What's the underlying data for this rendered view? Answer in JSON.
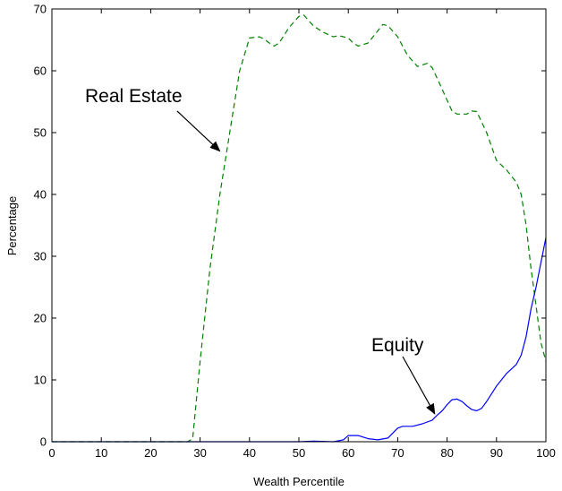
{
  "chart_data": {
    "type": "line",
    "title": "",
    "xlabel": "Wealth Percentile",
    "ylabel": "Percentage",
    "xlim": [
      0,
      100
    ],
    "ylim": [
      0,
      70
    ],
    "xticks": [
      0,
      10,
      20,
      30,
      40,
      50,
      60,
      70,
      80,
      90,
      100
    ],
    "yticks": [
      0,
      10,
      20,
      30,
      40,
      50,
      60,
      70
    ],
    "grid": false,
    "legend": "none",
    "series": [
      {
        "name": "Real Estate",
        "color": "#008000",
        "dash": "dashed",
        "points": [
          [
            0,
            0
          ],
          [
            27.5,
            0
          ],
          [
            28.5,
            0.5
          ],
          [
            30,
            13
          ],
          [
            32,
            28
          ],
          [
            34,
            40
          ],
          [
            36,
            50
          ],
          [
            38,
            60
          ],
          [
            40,
            65.3
          ],
          [
            42,
            65.5
          ],
          [
            43,
            65.1
          ],
          [
            44,
            64.5
          ],
          [
            45,
            64
          ],
          [
            46,
            64.5
          ],
          [
            48,
            67
          ],
          [
            50,
            68.8
          ],
          [
            51,
            69
          ],
          [
            53,
            67.2
          ],
          [
            55,
            66.2
          ],
          [
            57,
            65.5
          ],
          [
            58,
            65.7
          ],
          [
            60,
            65.3
          ],
          [
            61,
            64.5
          ],
          [
            62,
            64
          ],
          [
            64,
            64.5
          ],
          [
            66,
            66.5
          ],
          [
            67,
            67.5
          ],
          [
            68,
            67.3
          ],
          [
            70,
            65.5
          ],
          [
            72,
            62.5
          ],
          [
            74,
            60.7
          ],
          [
            76,
            61.2
          ],
          [
            77,
            60.5
          ],
          [
            79,
            57
          ],
          [
            81,
            53.5
          ],
          [
            82,
            53
          ],
          [
            84,
            53
          ],
          [
            85,
            53.5
          ],
          [
            86,
            53.4
          ],
          [
            88,
            50
          ],
          [
            90,
            45.5
          ],
          [
            92,
            44
          ],
          [
            94,
            42
          ],
          [
            95,
            40
          ],
          [
            96,
            35
          ],
          [
            97,
            28
          ],
          [
            98,
            22
          ],
          [
            99,
            16
          ],
          [
            100,
            13
          ]
        ]
      },
      {
        "name": "Equity",
        "color": "#0000ff",
        "dash": "solid",
        "points": [
          [
            0,
            0
          ],
          [
            50,
            0
          ],
          [
            53,
            0.1
          ],
          [
            57,
            0
          ],
          [
            59,
            0.3
          ],
          [
            60,
            1
          ],
          [
            62,
            1
          ],
          [
            64,
            0.5
          ],
          [
            66,
            0.3
          ],
          [
            68,
            0.6
          ],
          [
            70,
            2.2
          ],
          [
            71,
            2.5
          ],
          [
            73,
            2.5
          ],
          [
            75,
            2.9
          ],
          [
            77,
            3.5
          ],
          [
            78,
            4.3
          ],
          [
            79,
            5
          ],
          [
            80,
            6
          ],
          [
            81,
            6.8
          ],
          [
            82,
            6.9
          ],
          [
            83,
            6.5
          ],
          [
            84,
            5.8
          ],
          [
            85,
            5.2
          ],
          [
            86,
            5
          ],
          [
            87,
            5.4
          ],
          [
            88,
            6.5
          ],
          [
            90,
            9
          ],
          [
            92,
            11
          ],
          [
            94,
            12.5
          ],
          [
            95,
            14
          ],
          [
            96,
            17
          ],
          [
            97,
            21.5
          ],
          [
            98,
            25
          ],
          [
            99,
            29
          ],
          [
            100,
            33
          ]
        ]
      }
    ],
    "annotations": [
      {
        "text": "Real Estate",
        "arrow_to": [
          34,
          47
        ]
      },
      {
        "text": "Equity",
        "arrow_to": [
          77.5,
          4.5
        ]
      }
    ]
  }
}
